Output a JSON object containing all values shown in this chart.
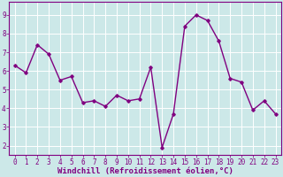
{
  "x": [
    0,
    1,
    2,
    3,
    4,
    5,
    6,
    7,
    8,
    9,
    10,
    11,
    12,
    13,
    14,
    15,
    16,
    17,
    18,
    19,
    20,
    21,
    22,
    23
  ],
  "y": [
    6.3,
    5.9,
    7.4,
    6.9,
    5.5,
    5.7,
    4.3,
    4.4,
    4.1,
    4.7,
    4.4,
    4.5,
    6.2,
    1.9,
    3.7,
    8.4,
    9.0,
    8.7,
    7.6,
    5.6,
    5.4,
    3.9,
    4.4,
    3.7
  ],
  "line_color": "#800080",
  "marker": "D",
  "marker_size": 1.8,
  "linewidth": 1.0,
  "xlabel": "Windchill (Refroidissement éolien,°C)",
  "xlabel_fontsize": 6.5,
  "xlabel_color": "#800080",
  "xtick_labels": [
    "0",
    "1",
    "2",
    "3",
    "4",
    "5",
    "6",
    "7",
    "8",
    "9",
    "10",
    "11",
    "12",
    "13",
    "14",
    "15",
    "16",
    "17",
    "18",
    "19",
    "20",
    "21",
    "22",
    "23"
  ],
  "ytick_labels": [
    "2",
    "3",
    "4",
    "5",
    "6",
    "7",
    "8",
    "9"
  ],
  "ytick_vals": [
    2,
    3,
    4,
    5,
    6,
    7,
    8,
    9
  ],
  "ylim": [
    1.5,
    9.7
  ],
  "xlim": [
    -0.5,
    23.5
  ],
  "background_color": "#cce8e8",
  "grid_color": "#ffffff",
  "tick_color": "#800080",
  "spine_color": "#800080",
  "tick_fontsize": 5.5,
  "fig_width": 3.2,
  "fig_height": 2.0,
  "dpi": 100
}
